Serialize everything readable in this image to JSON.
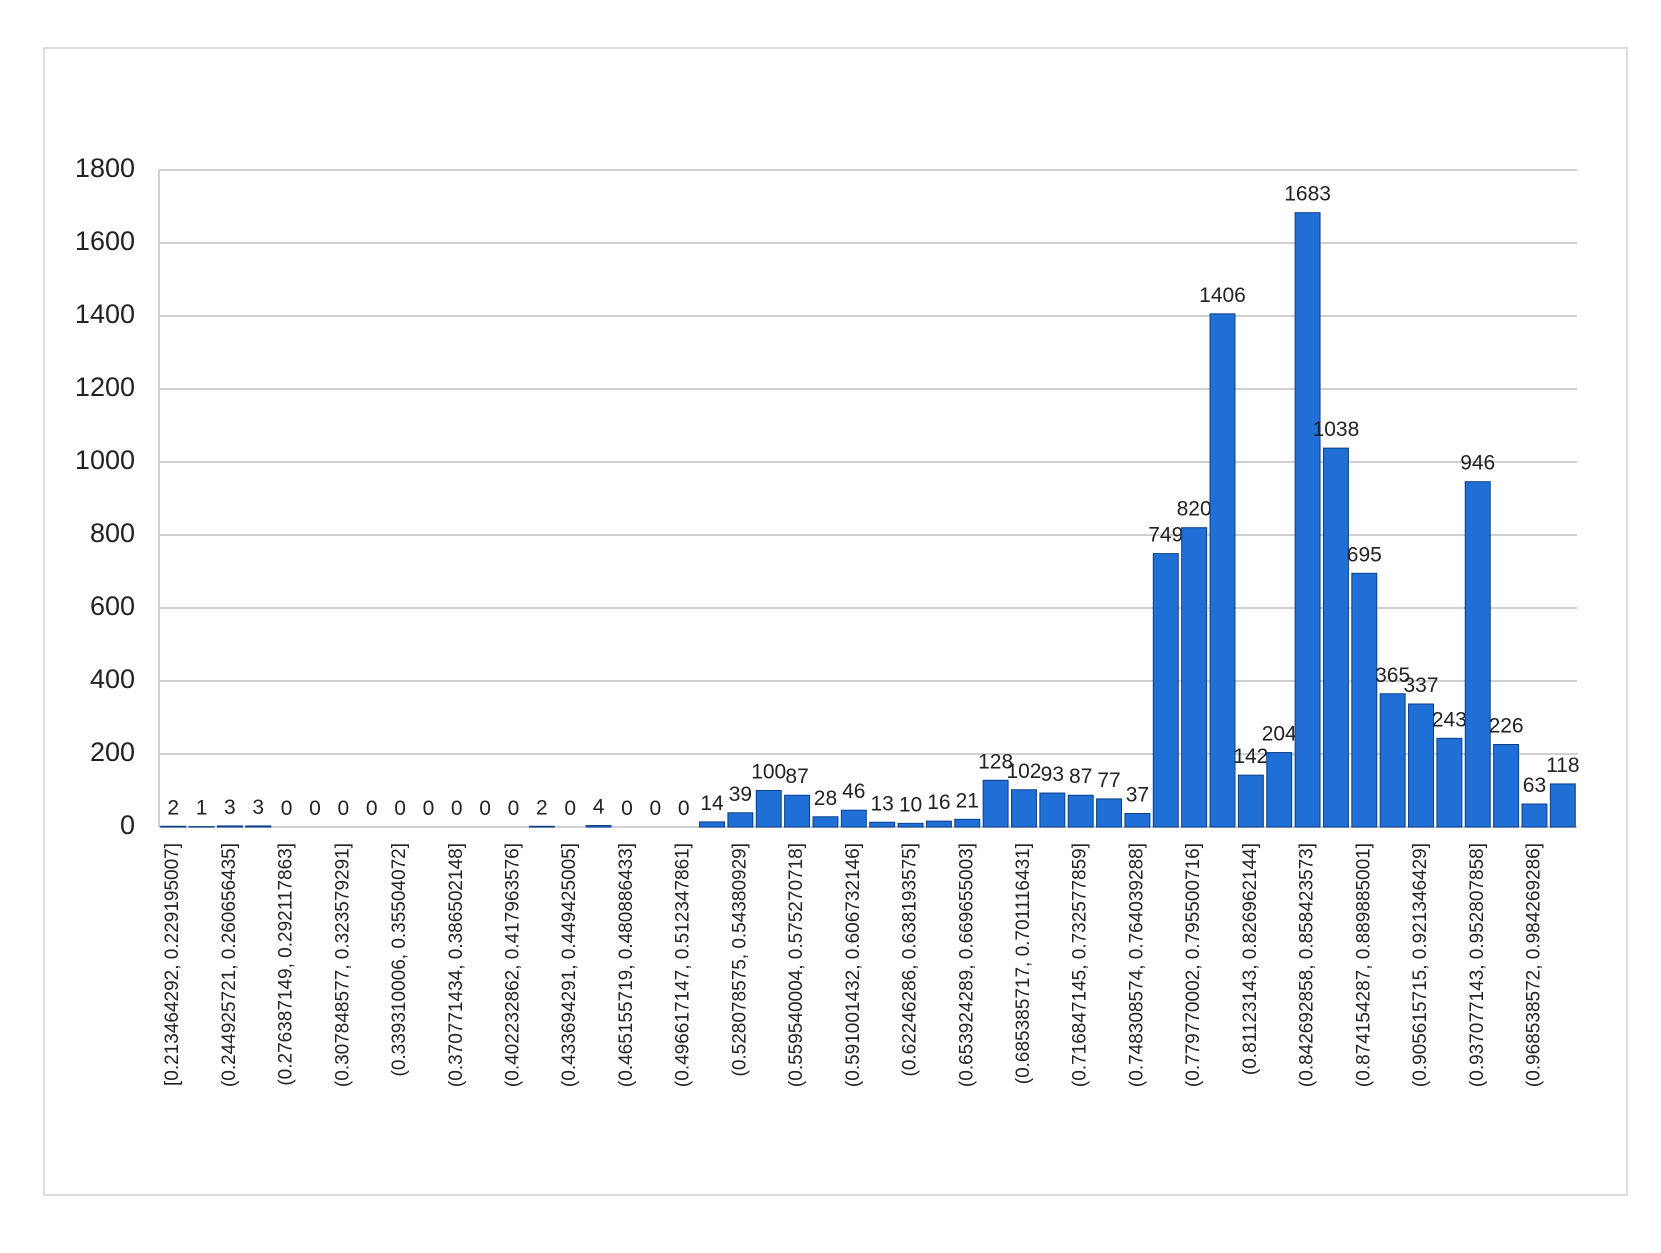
{
  "chart_data": {
    "type": "bar",
    "categories": [
      "[0.213464292, 0.229195007]",
      null,
      "(0.244925721, 0.260656435]",
      null,
      "(0.276387149, 0.292117863]",
      null,
      "(0.307848577, 0.323579291]",
      null,
      "(0.339310006, 0.35504072]",
      null,
      "(0.370771434, 0.386502148]",
      null,
      "(0.402232862, 0.417963576]",
      null,
      "(0.433694291, 0.449425005]",
      null,
      "(0.465155719, 0.480886433]",
      null,
      "(0.496617147, 0.512347861]",
      null,
      "(0.528078575, 0.54380929]",
      null,
      "(0.559540004, 0.575270718]",
      null,
      "(0.591001432, 0.606732146]",
      null,
      "(0.62246286, 0.638193575]",
      null,
      "(0.653924289, 0.669655003]",
      null,
      "(0.685385717, 0.701116431]",
      null,
      "(0.716847145, 0.732577859]",
      null,
      "(0.748308574, 0.764039288]",
      null,
      "(0.779770002, 0.795500716]",
      null,
      "(0.81123143, 0.826962144]",
      null,
      "(0.842692858, 0.858423573]",
      null,
      "(0.874154287, 0.889885001]",
      null,
      "(0.905615715, 0.921346429]",
      null,
      "(0.937077143, 0.952807858]",
      null,
      "(0.968538572, 0.984269286]",
      null
    ],
    "values": [
      2,
      1,
      3,
      3,
      0,
      0,
      0,
      0,
      0,
      0,
      0,
      0,
      0,
      2,
      0,
      4,
      0,
      0,
      0,
      14,
      39,
      100,
      87,
      28,
      46,
      13,
      10,
      16,
      21,
      128,
      102,
      93,
      87,
      77,
      37,
      749,
      820,
      1406,
      142,
      204,
      1683,
      1038,
      695,
      365,
      337,
      243,
      946,
      226,
      63,
      118
    ],
    "color": "#1f6fd6",
    "ylim": [
      0,
      1800
    ],
    "yticks": [
      0,
      200,
      400,
      600,
      800,
      1000,
      1200,
      1400,
      1600,
      1800
    ],
    "grid": true
  }
}
